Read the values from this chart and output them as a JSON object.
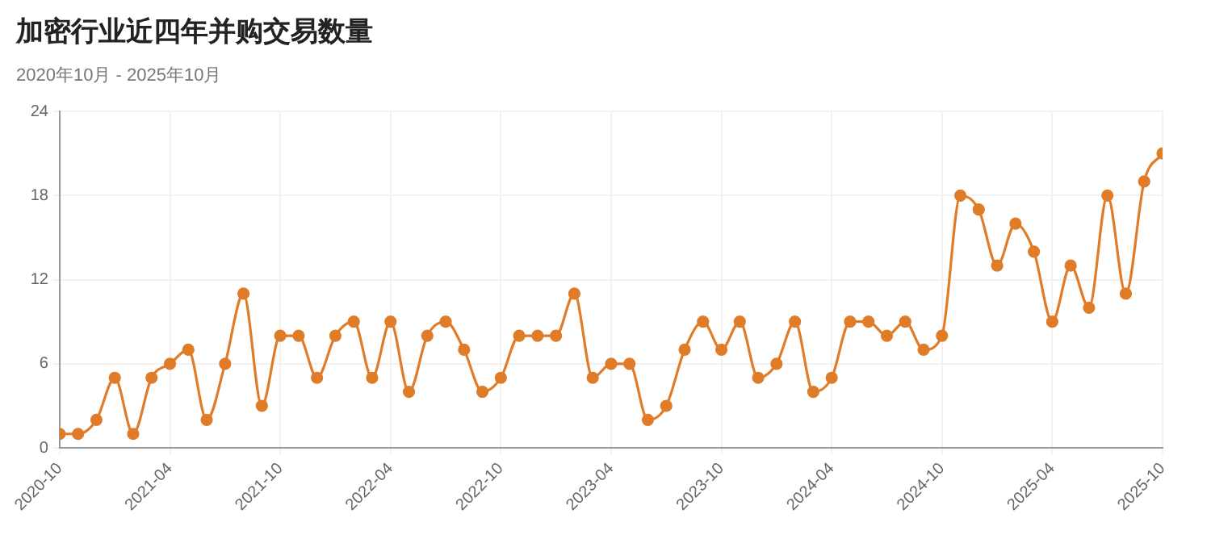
{
  "chart_data": {
    "type": "line",
    "title": "加密行业近四年并购交易数量",
    "subtitle": "2020年10月 - 2025年10月",
    "x": [
      "2020-10",
      "2020-11",
      "2020-12",
      "2021-01",
      "2021-02",
      "2021-03",
      "2021-04",
      "2021-05",
      "2021-06",
      "2021-07",
      "2021-08",
      "2021-09",
      "2021-10",
      "2021-11",
      "2021-12",
      "2022-01",
      "2022-02",
      "2022-03",
      "2022-04",
      "2022-05",
      "2022-06",
      "2022-07",
      "2022-08",
      "2022-09",
      "2022-10",
      "2022-11",
      "2022-12",
      "2023-01",
      "2023-02",
      "2023-03",
      "2023-04",
      "2023-05",
      "2023-06",
      "2023-07",
      "2023-08",
      "2023-09",
      "2023-10",
      "2023-11",
      "2023-12",
      "2024-01",
      "2024-02",
      "2024-03",
      "2024-04",
      "2024-05",
      "2024-06",
      "2024-07",
      "2024-08",
      "2024-09",
      "2024-10",
      "2024-11",
      "2024-12",
      "2025-01",
      "2025-02",
      "2025-03",
      "2025-04",
      "2025-05",
      "2025-06",
      "2025-07",
      "2025-08",
      "2025-09",
      "2025-10"
    ],
    "series": [
      {
        "color": "#e07b28",
        "values": [
          1,
          1,
          2,
          5,
          1,
          5,
          6,
          7,
          2,
          6,
          11,
          3,
          8,
          8,
          5,
          8,
          9,
          5,
          9,
          4,
          8,
          9,
          7,
          4,
          5,
          8,
          8,
          8,
          11,
          5,
          6,
          6,
          2,
          3,
          7,
          9,
          7,
          9,
          5,
          6,
          9,
          4,
          5,
          9,
          9,
          8,
          9,
          7,
          8,
          18,
          17,
          13,
          16,
          14,
          9,
          13,
          10,
          18,
          11,
          19,
          21
        ]
      }
    ],
    "xlim": [
      "2020-10",
      "2025-10"
    ],
    "xticks": [
      "2020-10",
      "2021-04",
      "2021-10",
      "2022-04",
      "2022-10",
      "2023-04",
      "2023-10",
      "2024-04",
      "2024-10",
      "2025-04",
      "2025-10"
    ],
    "ylim": [
      0,
      24
    ],
    "yticks": [
      0,
      6,
      12,
      18,
      24
    ],
    "grid": true,
    "legend": false,
    "marker": "circle",
    "line_style": "solid"
  }
}
